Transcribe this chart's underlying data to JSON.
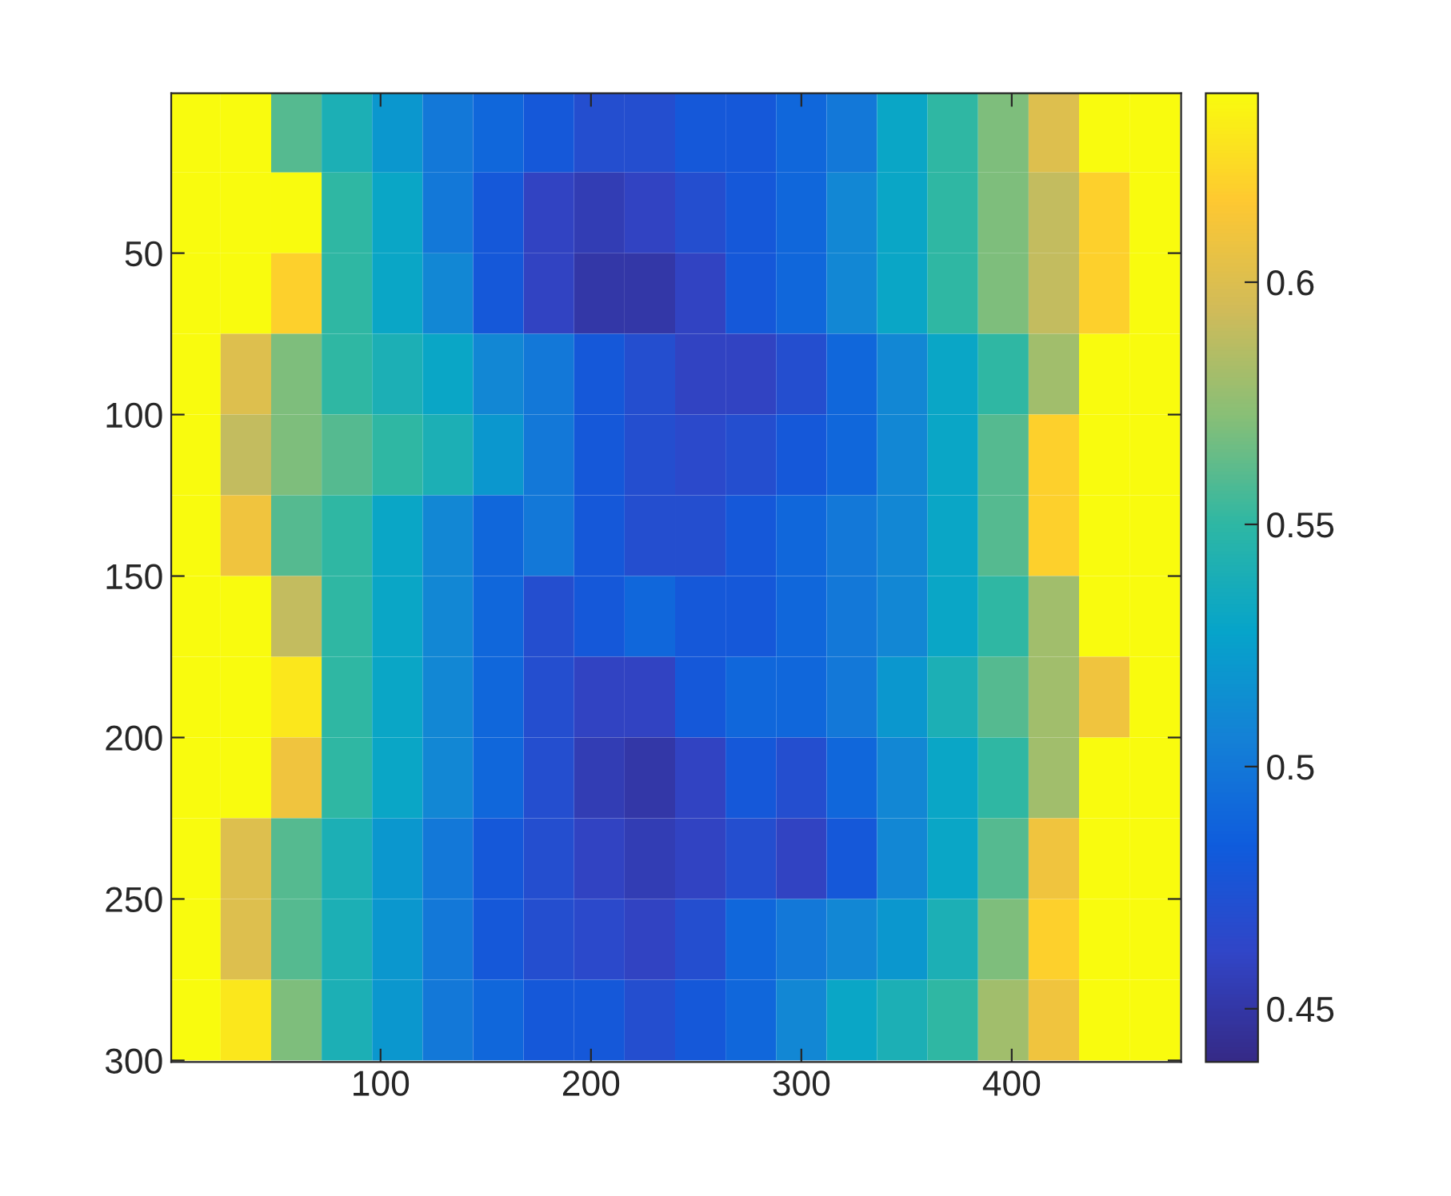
{
  "chart_data": {
    "type": "heatmap",
    "x": [
      12,
      36,
      60,
      84,
      108,
      132,
      156,
      180,
      204,
      228,
      252,
      276,
      300,
      324,
      348,
      372,
      396,
      420,
      444,
      468
    ],
    "y": [
      12.5,
      37.5,
      62.5,
      87.5,
      112.5,
      137.5,
      162.5,
      187.5,
      212.5,
      237.5,
      262.5,
      287.5
    ],
    "cells": [
      [
        0.64,
        0.64,
        0.56,
        0.54,
        0.52,
        0.5,
        0.49,
        0.48,
        0.47,
        0.47,
        0.48,
        0.48,
        0.49,
        0.5,
        0.53,
        0.55,
        0.57,
        0.6,
        0.64,
        0.64
      ],
      [
        0.64,
        0.64,
        0.64,
        0.55,
        0.53,
        0.5,
        0.48,
        0.46,
        0.455,
        0.46,
        0.47,
        0.48,
        0.49,
        0.51,
        0.53,
        0.55,
        0.57,
        0.59,
        0.62,
        0.64
      ],
      [
        0.64,
        0.64,
        0.62,
        0.55,
        0.53,
        0.51,
        0.48,
        0.46,
        0.45,
        0.45,
        0.46,
        0.48,
        0.49,
        0.51,
        0.53,
        0.55,
        0.57,
        0.59,
        0.62,
        0.64
      ],
      [
        0.64,
        0.6,
        0.57,
        0.55,
        0.54,
        0.53,
        0.51,
        0.5,
        0.48,
        0.47,
        0.46,
        0.46,
        0.47,
        0.49,
        0.51,
        0.53,
        0.55,
        0.58,
        0.64,
        0.64
      ],
      [
        0.64,
        0.59,
        0.57,
        0.56,
        0.55,
        0.54,
        0.52,
        0.5,
        0.48,
        0.47,
        0.465,
        0.47,
        0.48,
        0.49,
        0.51,
        0.53,
        0.56,
        0.62,
        0.64,
        0.64
      ],
      [
        0.64,
        0.61,
        0.56,
        0.55,
        0.53,
        0.51,
        0.49,
        0.5,
        0.48,
        0.47,
        0.47,
        0.48,
        0.49,
        0.5,
        0.51,
        0.53,
        0.56,
        0.62,
        0.64,
        0.64
      ],
      [
        0.64,
        0.64,
        0.59,
        0.55,
        0.53,
        0.51,
        0.49,
        0.47,
        0.48,
        0.49,
        0.48,
        0.48,
        0.49,
        0.5,
        0.51,
        0.53,
        0.55,
        0.58,
        0.64,
        0.64
      ],
      [
        0.64,
        0.64,
        0.63,
        0.55,
        0.53,
        0.51,
        0.49,
        0.47,
        0.46,
        0.46,
        0.48,
        0.49,
        0.49,
        0.5,
        0.52,
        0.54,
        0.56,
        0.58,
        0.61,
        0.64
      ],
      [
        0.64,
        0.64,
        0.61,
        0.55,
        0.53,
        0.51,
        0.49,
        0.47,
        0.455,
        0.45,
        0.46,
        0.48,
        0.47,
        0.49,
        0.51,
        0.53,
        0.55,
        0.58,
        0.64,
        0.64
      ],
      [
        0.64,
        0.6,
        0.56,
        0.54,
        0.52,
        0.5,
        0.48,
        0.47,
        0.46,
        0.455,
        0.46,
        0.47,
        0.46,
        0.48,
        0.51,
        0.53,
        0.56,
        0.61,
        0.64,
        0.64
      ],
      [
        0.64,
        0.6,
        0.56,
        0.54,
        0.52,
        0.5,
        0.48,
        0.47,
        0.465,
        0.46,
        0.47,
        0.49,
        0.5,
        0.51,
        0.52,
        0.54,
        0.57,
        0.62,
        0.64,
        0.64
      ],
      [
        0.64,
        0.63,
        0.57,
        0.54,
        0.52,
        0.5,
        0.49,
        0.48,
        0.48,
        0.47,
        0.48,
        0.49,
        0.51,
        0.53,
        0.54,
        0.55,
        0.58,
        0.61,
        0.64,
        0.64
      ]
    ],
    "xlim": [
      0.5,
      480.5
    ],
    "ylim": [
      300.5,
      0.5
    ],
    "xticks": [
      100,
      200,
      300,
      400
    ],
    "yticks": [
      50,
      100,
      150,
      200,
      250,
      300
    ],
    "clim": [
      0.439,
      0.639
    ],
    "cticks": [
      0.45,
      0.5,
      0.55,
      0.6
    ]
  }
}
